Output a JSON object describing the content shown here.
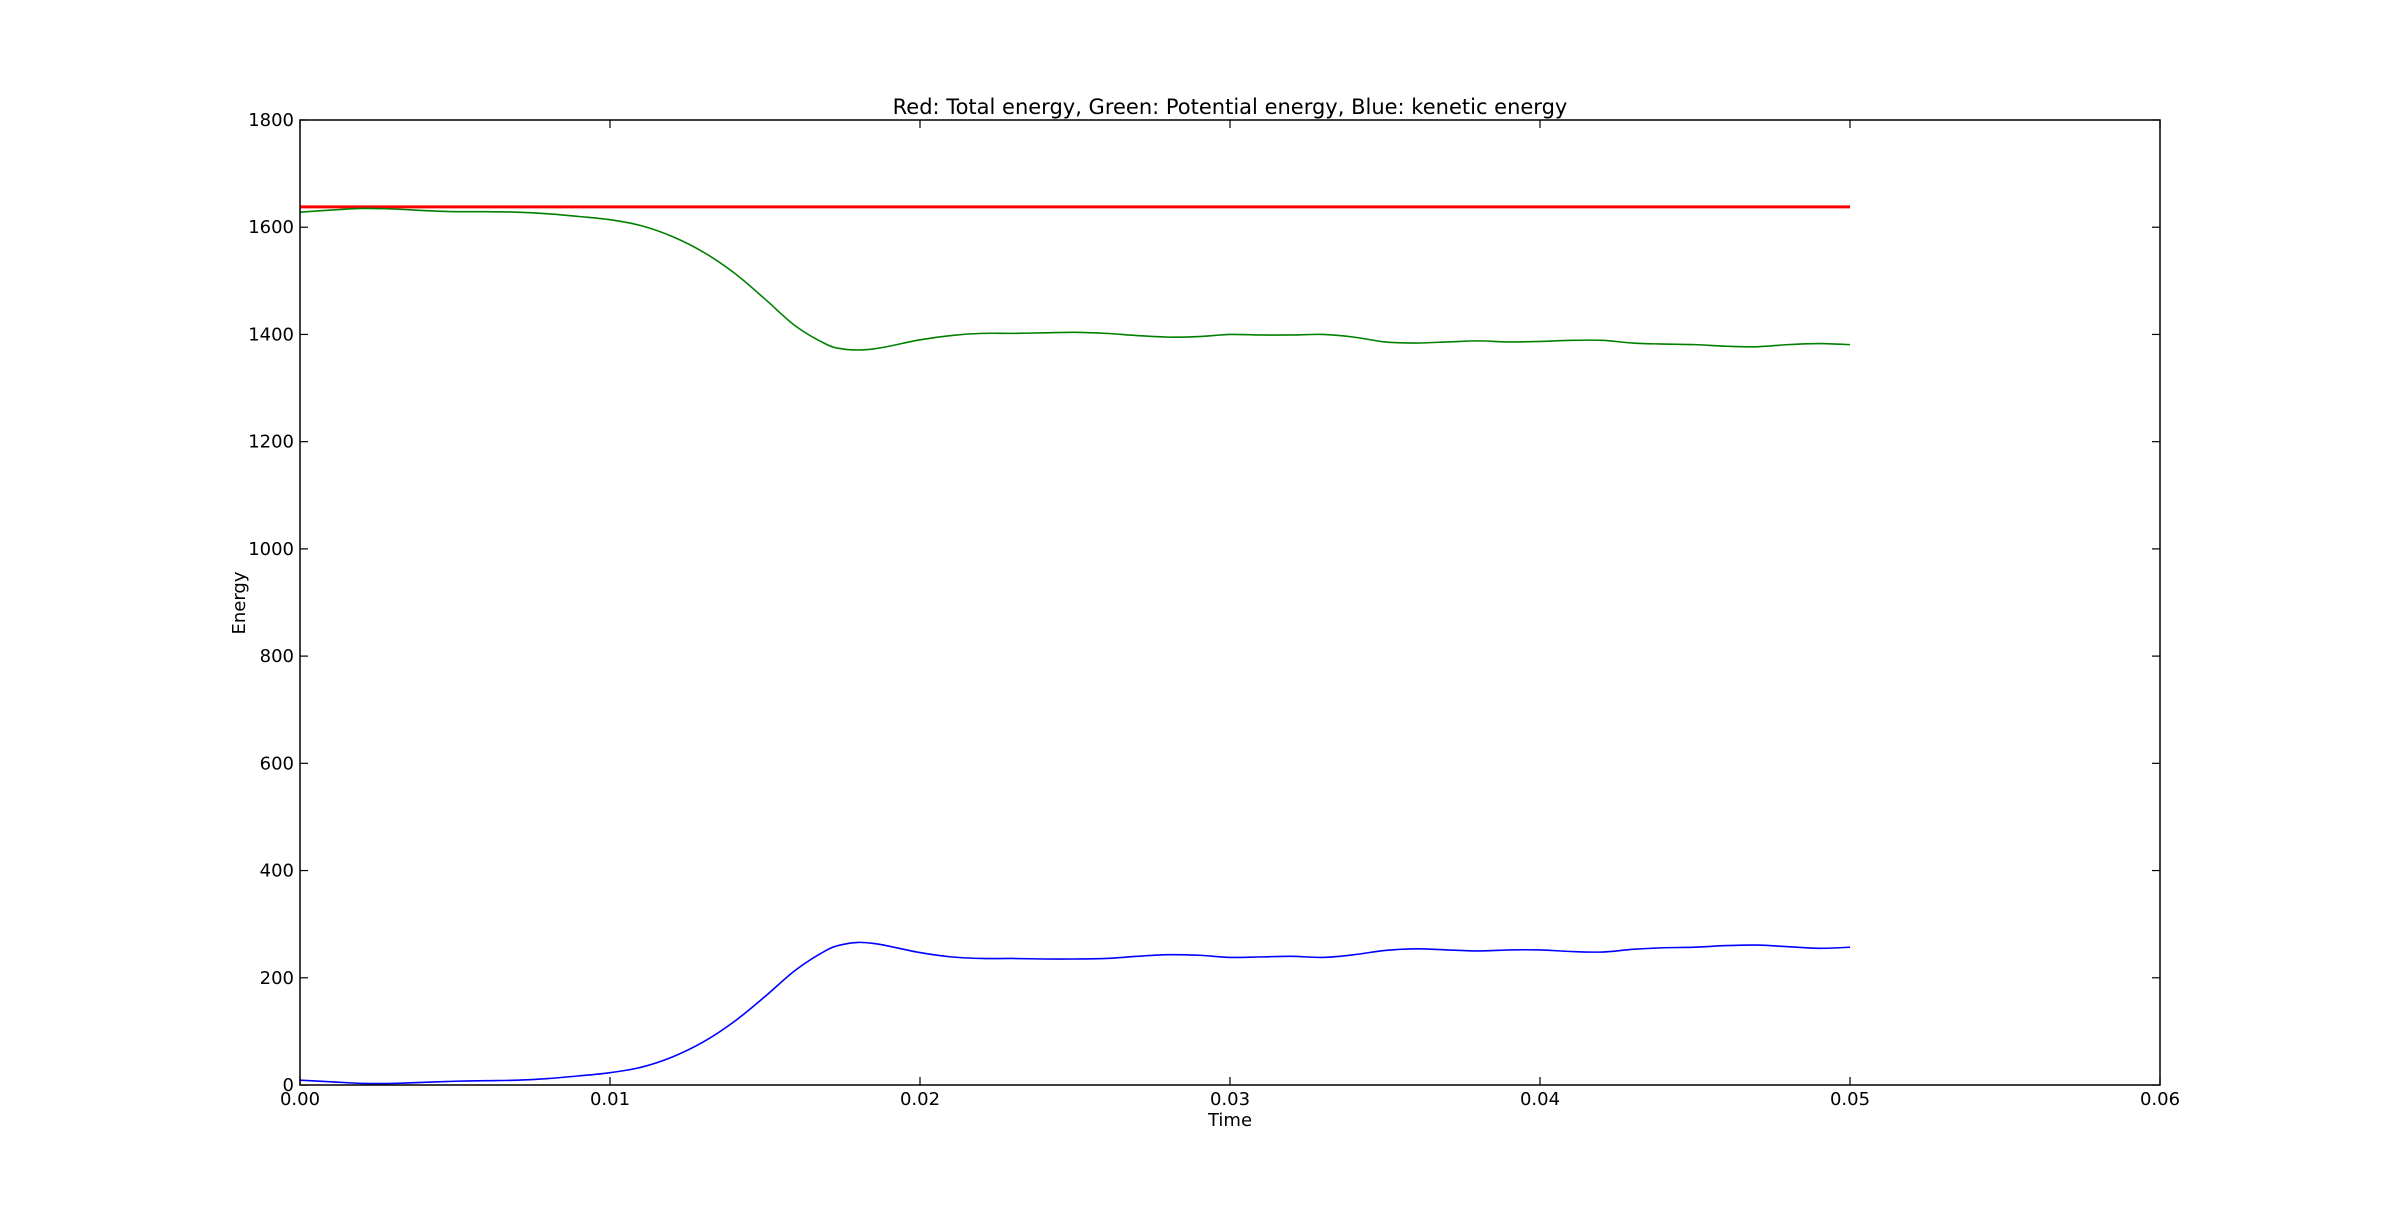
{
  "chart_data": {
    "type": "line",
    "title": "Red: Total energy, Green: Potential energy, Blue: kenetic energy",
    "xlabel": "Time",
    "ylabel": "Energy",
    "xlim": [
      0.0,
      0.06
    ],
    "ylim": [
      0,
      1800
    ],
    "xticks": [
      "0.00",
      "0.01",
      "0.02",
      "0.03",
      "0.04",
      "0.05",
      "0.06"
    ],
    "yticks": [
      "0",
      "200",
      "400",
      "600",
      "800",
      "1000",
      "1200",
      "1400",
      "1600",
      "1800"
    ],
    "grid": false,
    "legend": "none",
    "series": [
      {
        "color": "#ff0000",
        "width": 3,
        "x": [
          0.0,
          0.05
        ],
        "y": [
          1638,
          1638
        ]
      },
      {
        "color": "#008000",
        "width": 1.6,
        "x": [
          0.0,
          0.001,
          0.002,
          0.003,
          0.004,
          0.005,
          0.006,
          0.007,
          0.008,
          0.009,
          0.01,
          0.011,
          0.012,
          0.013,
          0.014,
          0.015,
          0.016,
          0.017,
          0.0175,
          0.018,
          0.0185,
          0.019,
          0.02,
          0.021,
          0.022,
          0.023,
          0.024,
          0.025,
          0.026,
          0.027,
          0.028,
          0.029,
          0.03,
          0.031,
          0.032,
          0.033,
          0.034,
          0.035,
          0.036,
          0.037,
          0.038,
          0.039,
          0.04,
          0.041,
          0.042,
          0.043,
          0.044,
          0.045,
          0.046,
          0.047,
          0.048,
          0.049,
          0.05
        ],
        "y": [
          1628,
          1632,
          1635,
          1634,
          1631,
          1629,
          1629,
          1628,
          1625,
          1620,
          1614,
          1603,
          1583,
          1554,
          1515,
          1466,
          1415,
          1381,
          1373,
          1371,
          1373,
          1378,
          1390,
          1398,
          1402,
          1402,
          1403,
          1404,
          1402,
          1398,
          1395,
          1396,
          1400,
          1399,
          1399,
          1400,
          1395,
          1386,
          1384,
          1386,
          1388,
          1386,
          1387,
          1389,
          1389,
          1384,
          1382,
          1381,
          1378,
          1377,
          1381,
          1383,
          1381
        ]
      },
      {
        "color": "#0000ff",
        "width": 1.6,
        "x": [
          0.0,
          0.001,
          0.002,
          0.003,
          0.004,
          0.005,
          0.006,
          0.007,
          0.008,
          0.009,
          0.01,
          0.011,
          0.012,
          0.013,
          0.014,
          0.015,
          0.016,
          0.017,
          0.0175,
          0.018,
          0.0185,
          0.019,
          0.02,
          0.021,
          0.022,
          0.023,
          0.024,
          0.025,
          0.026,
          0.027,
          0.028,
          0.029,
          0.03,
          0.031,
          0.032,
          0.033,
          0.034,
          0.035,
          0.036,
          0.037,
          0.038,
          0.039,
          0.04,
          0.041,
          0.042,
          0.043,
          0.044,
          0.045,
          0.046,
          0.047,
          0.048,
          0.049,
          0.05
        ],
        "y": [
          9,
          6,
          3,
          3,
          5,
          7,
          8,
          9,
          12,
          17,
          23,
          33,
          52,
          80,
          118,
          165,
          215,
          252,
          262,
          266,
          264,
          259,
          247,
          239,
          236,
          236,
          235,
          235,
          236,
          240,
          243,
          242,
          238,
          239,
          240,
          238,
          243,
          251,
          254,
          252,
          250,
          252,
          252,
          249,
          248,
          253,
          256,
          257,
          260,
          261,
          258,
          255,
          257
        ]
      }
    ]
  }
}
